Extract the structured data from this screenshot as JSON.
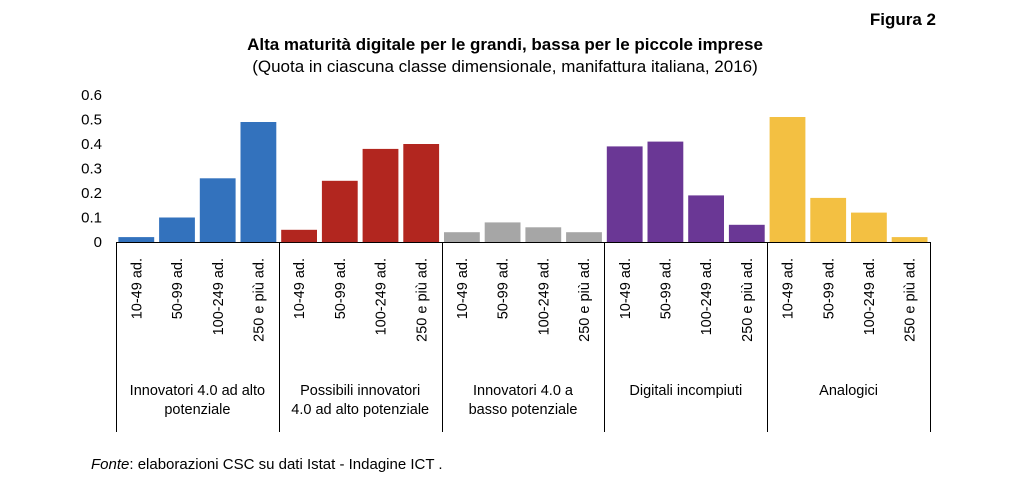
{
  "figure_label": "Figura 2",
  "source": {
    "prefix": "Fonte",
    "text": ": elaborazioni CSC su dati Istat - Indagine ICT ."
  },
  "chart_data": {
    "type": "bar",
    "title": "Alta maturità digitale per le grandi, bassa per le piccole imprese",
    "subtitle": "(Quota in ciascuna  classe dimensionale, manifattura italiana,  2016)",
    "xlabel": "",
    "ylabel": "",
    "ylim": [
      0,
      0.6
    ],
    "yticks": [
      "0",
      "0.1",
      "0.2",
      "0.3",
      "0.4",
      "0.5",
      "0.6"
    ],
    "grid": false,
    "legend": "none",
    "categories": [
      "10-49 ad.",
      "50-99 ad.",
      "100-249 ad.",
      "250 e più ad."
    ],
    "groups": [
      {
        "name_lines": [
          "Innovatori 4.0 ad alto",
          "potenziale"
        ],
        "color": "#3372bd",
        "values": [
          0.02,
          0.1,
          0.26,
          0.49
        ]
      },
      {
        "name_lines": [
          "Possibili innovatori",
          "4.0 ad alto potenziale"
        ],
        "color": "#b2261f",
        "values": [
          0.05,
          0.25,
          0.38,
          0.4
        ]
      },
      {
        "name_lines": [
          "Innovatori 4.0 a",
          "basso potenziale"
        ],
        "color": "#a6a6a6",
        "values": [
          0.04,
          0.08,
          0.06,
          0.04
        ]
      },
      {
        "name_lines": [
          "Digitali incompiuti"
        ],
        "color": "#6a3795",
        "values": [
          0.39,
          0.41,
          0.19,
          0.07
        ]
      },
      {
        "name_lines": [
          "Analogici"
        ],
        "color": "#f3c042",
        "values": [
          0.51,
          0.18,
          0.12,
          0.02
        ]
      }
    ]
  }
}
